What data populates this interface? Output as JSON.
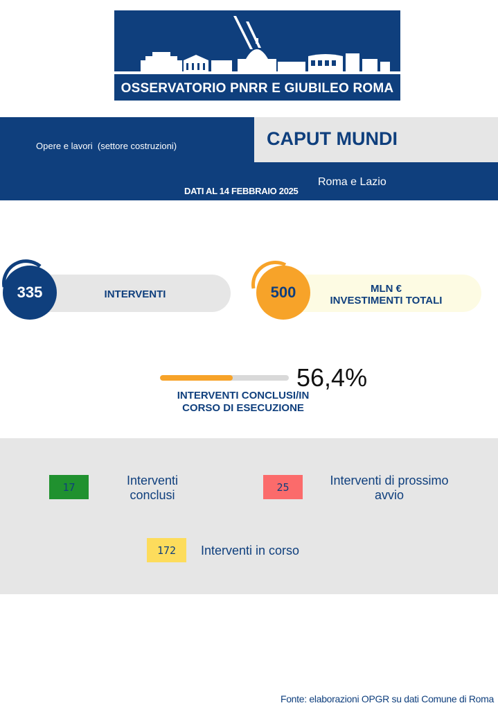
{
  "header": {
    "title": "OSSERVATORIO PNRR E GIUBILEO ROMA"
  },
  "band": {
    "sector": "Opere e lavori  (settore costruzioni)",
    "project": "CAPUT MUNDI",
    "date": "DATI AL 14 FEBBRAIO 2025",
    "region": "Roma e Lazio"
  },
  "kpis": {
    "interventi": {
      "value": "335",
      "label": "INTERVENTI"
    },
    "investimenti": {
      "value": "500",
      "label_line1": "MLN €",
      "label_line2": "INVESTIMENTI TOTALI"
    }
  },
  "progress": {
    "percent_text": "56,4%",
    "percent": 56.4,
    "label_line1": "INTERVENTI CONCLUSI/IN",
    "label_line2": "CORSO DI ESECUZIONE"
  },
  "status": {
    "conclusi": {
      "count": "17",
      "line1": "Interventi",
      "line2": "conclusi"
    },
    "prossimo_avvio": {
      "count": "25",
      "line1": "Interventi di prossimo",
      "line2": "avvio"
    },
    "in_corso": {
      "count": "172",
      "label": "Interventi in corso"
    }
  },
  "footer": {
    "source": "Fonte: elaborazioni OPGR su dati Comune di Roma"
  },
  "colors": {
    "navy": "#0f3f7d",
    "orange": "#f7a329",
    "green": "#20912f",
    "red": "#fb6b6b",
    "yellow": "#fddc5c",
    "grey": "#e6e6e6"
  }
}
